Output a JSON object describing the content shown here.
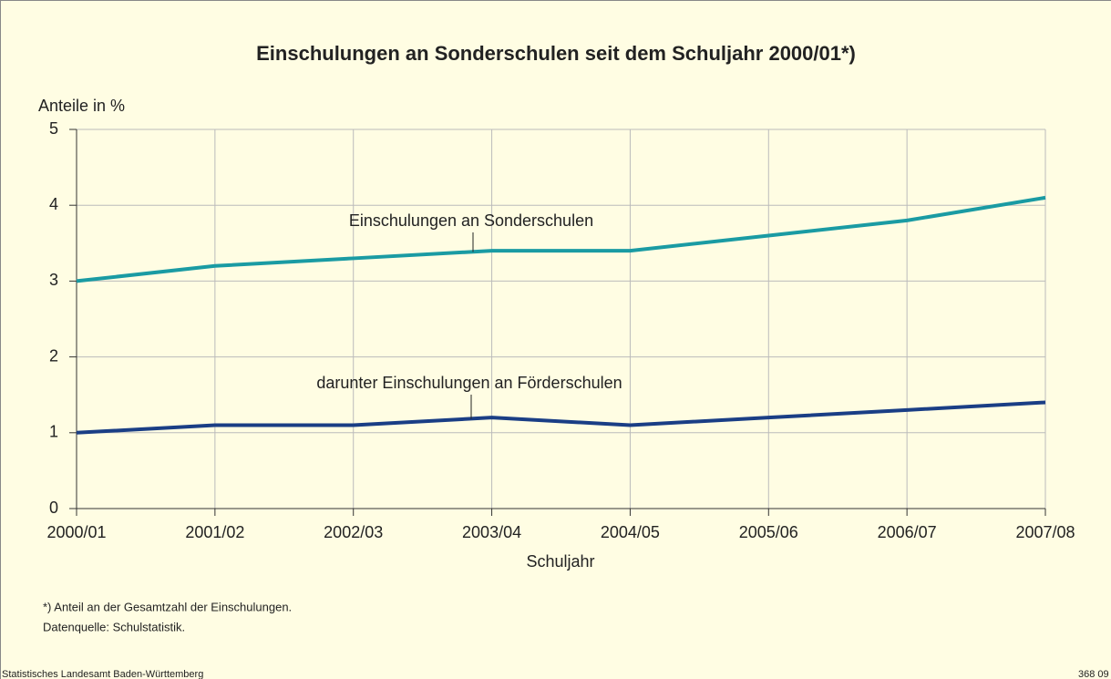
{
  "chart_data": {
    "type": "line",
    "title": "Einschulungen an Sonderschulen seit dem Schuljahr 2000/01*)",
    "y_label": "Anteile in %",
    "x_label": "Schuljahr",
    "categories": [
      "2000/01",
      "2001/02",
      "2002/03",
      "2003/04",
      "2004/05",
      "2005/06",
      "2006/07",
      "2007/08"
    ],
    "series": [
      {
        "name": "Einschulungen an Sonderschulen",
        "color": "#1a9ba3",
        "values": [
          3.0,
          3.2,
          3.3,
          3.4,
          3.4,
          3.6,
          3.8,
          4.1
        ]
      },
      {
        "name": "darunter Einschulungen an Förderschulen",
        "color": "#1a3e85",
        "values": [
          1.0,
          1.1,
          1.1,
          1.2,
          1.1,
          1.2,
          1.3,
          1.4
        ]
      }
    ],
    "ylim": [
      0,
      5
    ],
    "yticks": [
      0,
      1,
      2,
      3,
      4,
      5
    ],
    "grid": true,
    "notes": [
      "*) Anteil an der Gesamtzahl der Einschulungen.",
      "Datenquelle: Schulstatistik."
    ],
    "footer": "Statistisches Landesamt Baden-Württemberg",
    "code": "368 09"
  }
}
